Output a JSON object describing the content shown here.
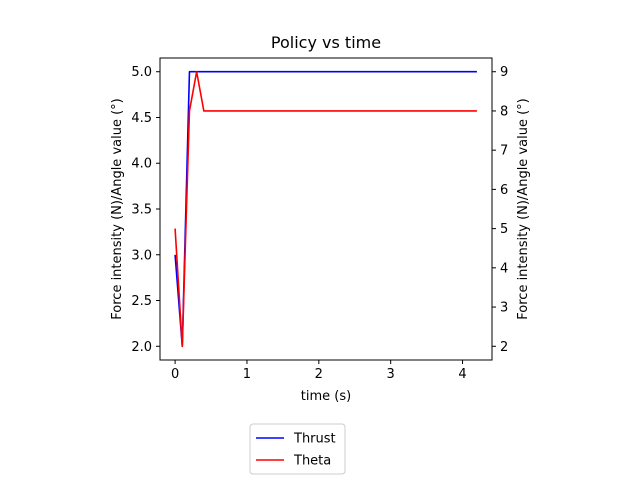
{
  "chart_data": {
    "type": "line",
    "title": "Policy vs time",
    "xlabel": "time (s)",
    "ylabel_left": "Force intensity (N)/Angle value (°)",
    "ylabel_right": "Force intensity (N)/Angle value (°)",
    "xlim": [
      -0.21,
      4.41
    ],
    "ylim_left": [
      1.85,
      5.15
    ],
    "ylim_right": [
      1.65,
      9.35
    ],
    "x_ticks": [
      0,
      1,
      2,
      3,
      4
    ],
    "y_ticks_left": [
      2.0,
      2.5,
      3.0,
      3.5,
      4.0,
      4.5,
      5.0
    ],
    "y_ticks_right": [
      2,
      3,
      4,
      5,
      6,
      7,
      8,
      9
    ],
    "grid": false,
    "legend_position": "below-left",
    "series": [
      {
        "name": "Thrust",
        "axis": "left",
        "color": "#0000ff",
        "x": [
          0.0,
          0.1,
          0.2,
          0.3,
          0.4,
          4.2
        ],
        "y": [
          3.0,
          2.0,
          5.0,
          5.0,
          5.0,
          5.0
        ]
      },
      {
        "name": "Theta",
        "axis": "right",
        "color": "#ff0000",
        "x": [
          0.0,
          0.1,
          0.2,
          0.3,
          0.4,
          4.2
        ],
        "y": [
          5.0,
          2.0,
          8.0,
          9.0,
          8.0,
          8.0
        ]
      }
    ]
  }
}
